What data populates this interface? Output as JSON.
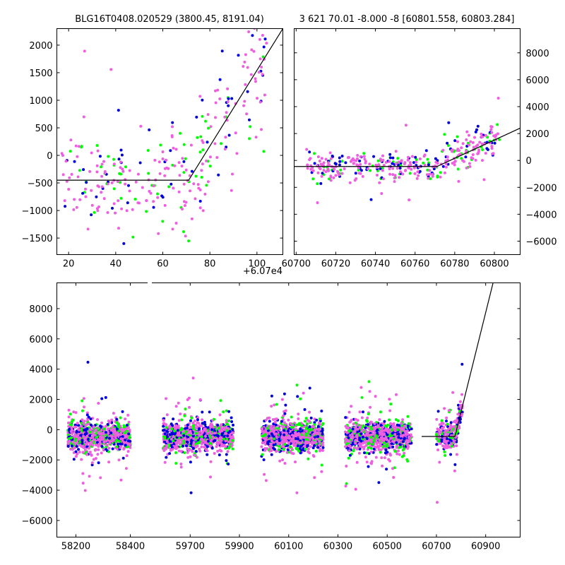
{
  "chart_data": [
    {
      "type": "scatter",
      "panel": "top-left",
      "title": "BLG16T0408.020529 (3800.45, 8191.04)",
      "xlabel": "",
      "ylabel": "",
      "offset_label": "+6.07e4",
      "xlim": [
        15,
        111
      ],
      "ylim": [
        -1800,
        2300
      ],
      "xticks": [
        20,
        40,
        60,
        80,
        100
      ],
      "xtick_labels": [
        "20",
        "40",
        "60",
        "80",
        "100"
      ],
      "yticks": [
        -1500,
        -1000,
        -500,
        0,
        500,
        1000,
        1500,
        2000
      ],
      "ytick_labels": [
        "−1500",
        "−1000",
        "−500",
        "0",
        "500",
        "1000",
        "1500",
        "2000"
      ],
      "ytick_side": "left",
      "model_line": {
        "x": [
          15,
          71,
          111
        ],
        "y": [
          -450,
          -450,
          2300
        ]
      },
      "series": [
        {
          "name": "green",
          "color": "#00ff00",
          "count": 60
        },
        {
          "name": "blue",
          "color": "#0000dd",
          "count": 55
        },
        {
          "name": "magenta",
          "color": "#ee5fe0",
          "count": 190
        }
      ]
    },
    {
      "type": "scatter",
      "panel": "top-right",
      "title": "3 621 70.01 -8.000 -8 [60801.558, 60803.284]",
      "xlabel": "",
      "ylabel": "",
      "xlim": [
        60699,
        60813
      ],
      "ylim": [
        -7000,
        9800
      ],
      "xticks": [
        60700,
        60720,
        60740,
        60760,
        60780,
        60800
      ],
      "xtick_labels": [
        "60700",
        "60720",
        "60740",
        "60760",
        "60780",
        "60800"
      ],
      "yticks": [
        -6000,
        -4000,
        -2000,
        0,
        2000,
        4000,
        6000,
        8000
      ],
      "ytick_labels": [
        "−6000",
        "−4000",
        "−2000",
        "0",
        "2000",
        "4000",
        "6000",
        "8000"
      ],
      "ytick_side": "right",
      "model_line": {
        "x": [
          60699,
          60771,
          60813
        ],
        "y": [
          -450,
          -450,
          2400
        ]
      },
      "series": [
        {
          "name": "green",
          "color": "#00ff00",
          "count": 70
        },
        {
          "name": "blue",
          "color": "#0000dd",
          "count": 80
        },
        {
          "name": "magenta",
          "color": "#ee5fe0",
          "count": 230
        }
      ]
    },
    {
      "type": "scatter",
      "panel": "bottom",
      "title": "",
      "xlabel": "",
      "ylabel": "",
      "ylim": [
        -7100,
        9700
      ],
      "yticks": [
        -6000,
        -4000,
        -2000,
        0,
        2000,
        4000,
        6000,
        8000
      ],
      "ytick_labels": [
        "−6000",
        "−4000",
        "−2000",
        "0",
        "2000",
        "4000",
        "6000",
        "8000"
      ],
      "ytick_side": "left",
      "broken_axis": true,
      "segments": [
        {
          "xlim": [
            58130,
            58470
          ],
          "xticks": [
            58200,
            58400
          ],
          "xtick_labels": [
            "58200",
            "58400"
          ],
          "seasons": [
            {
              "x0": 58170,
              "x1": 58400,
              "n": 900
            }
          ]
        },
        {
          "xlim": [
            59540,
            61040
          ],
          "xticks": [
            59700,
            59900,
            60100,
            60300,
            60500,
            60700,
            60900
          ],
          "xtick_labels": [
            "59700",
            "59900",
            "60100",
            "60300",
            "60500",
            "60700",
            "60900"
          ],
          "seasons": [
            {
              "x0": 59590,
              "x1": 59875,
              "n": 1000
            },
            {
              "x0": 59990,
              "x1": 60240,
              "n": 1000
            },
            {
              "x0": 60330,
              "x1": 60600,
              "n": 1000
            },
            {
              "x0": 60700,
              "x1": 60806,
              "n": 260
            }
          ]
        }
      ],
      "model_line": {
        "x": [
          60640,
          60775,
          60930
        ],
        "y": [
          -450,
          -450,
          9700
        ]
      },
      "series": [
        {
          "name": "green",
          "color": "#00ff00"
        },
        {
          "name": "blue",
          "color": "#0000dd"
        },
        {
          "name": "magenta",
          "color": "#ee5fe0"
        }
      ]
    }
  ]
}
